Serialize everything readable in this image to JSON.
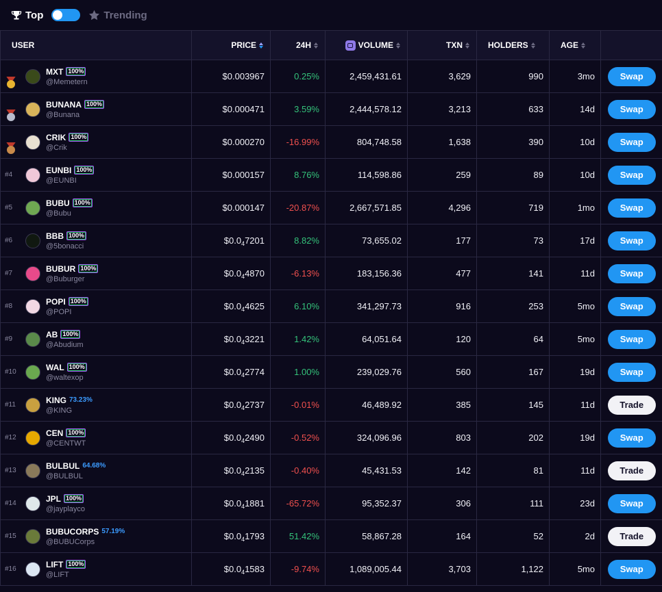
{
  "topbar": {
    "top_label": "Top",
    "trending_label": "Trending"
  },
  "columns": {
    "user": "USER",
    "price": "PRICE",
    "change": "24H",
    "volume": "VOLUME",
    "txn": "TXN",
    "holders": "HOLDERS",
    "age": "AGE"
  },
  "rows": [
    {
      "rank": "",
      "medal": "gold",
      "avatar_color": "#3a4a1a",
      "ticker": "MXT",
      "badge": "100%",
      "handle": "@Memetern",
      "price_main": "$0.003967",
      "price_sub": "",
      "price_tail": "",
      "change": "0.25%",
      "change_dir": "pos",
      "volume": "2,459,431.61",
      "txn": "3,629",
      "holders": "990",
      "age": "3mo",
      "action": "Swap"
    },
    {
      "rank": "",
      "medal": "silver",
      "avatar_color": "#d9b45a",
      "ticker": "BUNANA",
      "badge": "100%",
      "handle": "@Bunana",
      "price_main": "$0.000471",
      "price_sub": "",
      "price_tail": "",
      "change": "3.59%",
      "change_dir": "pos",
      "volume": "2,444,578.12",
      "txn": "3,213",
      "holders": "633",
      "age": "14d",
      "action": "Swap"
    },
    {
      "rank": "",
      "medal": "bronze",
      "avatar_color": "#e8e0d0",
      "ticker": "CRIK",
      "badge": "100%",
      "handle": "@Crik",
      "price_main": "$0.000270",
      "price_sub": "",
      "price_tail": "",
      "change": "-16.99%",
      "change_dir": "neg",
      "volume": "804,748.58",
      "txn": "1,638",
      "holders": "390",
      "age": "10d",
      "action": "Swap"
    },
    {
      "rank": "#4",
      "medal": "",
      "avatar_color": "#f0c8d8",
      "ticker": "EUNBI",
      "badge": "100%",
      "handle": "@EUNBI",
      "price_main": "$0.000157",
      "price_sub": "",
      "price_tail": "",
      "change": "8.76%",
      "change_dir": "pos",
      "volume": "114,598.86",
      "txn": "259",
      "holders": "89",
      "age": "10d",
      "action": "Swap"
    },
    {
      "rank": "#5",
      "medal": "",
      "avatar_color": "#6fa852",
      "ticker": "BUBU",
      "badge": "100%",
      "handle": "@Bubu",
      "price_main": "$0.000147",
      "price_sub": "",
      "price_tail": "",
      "change": "-20.87%",
      "change_dir": "neg",
      "volume": "2,667,571.85",
      "txn": "4,296",
      "holders": "719",
      "age": "1mo",
      "action": "Swap"
    },
    {
      "rank": "#6",
      "medal": "",
      "avatar_color": "#101810",
      "ticker": "BBB",
      "badge": "100%",
      "handle": "@5bonacci",
      "price_main": "$0.0",
      "price_sub": "4",
      "price_tail": "7201",
      "change": "8.82%",
      "change_dir": "pos",
      "volume": "73,655.02",
      "txn": "177",
      "holders": "73",
      "age": "17d",
      "action": "Swap"
    },
    {
      "rank": "#7",
      "medal": "",
      "avatar_color": "#e84a8a",
      "ticker": "BUBUR",
      "badge": "100%",
      "handle": "@Buburger",
      "price_main": "$0.0",
      "price_sub": "4",
      "price_tail": "4870",
      "change": "-6.13%",
      "change_dir": "neg",
      "volume": "183,156.36",
      "txn": "477",
      "holders": "141",
      "age": "11d",
      "action": "Swap"
    },
    {
      "rank": "#8",
      "medal": "",
      "avatar_color": "#f2d8e4",
      "ticker": "POPI",
      "badge": "100%",
      "handle": "@POPI",
      "price_main": "$0.0",
      "price_sub": "4",
      "price_tail": "4625",
      "change": "6.10%",
      "change_dir": "pos",
      "volume": "341,297.73",
      "txn": "916",
      "holders": "253",
      "age": "5mo",
      "action": "Swap"
    },
    {
      "rank": "#9",
      "medal": "",
      "avatar_color": "#5a8a4a",
      "ticker": "AB",
      "badge": "100%",
      "handle": "@Abudium",
      "price_main": "$0.0",
      "price_sub": "4",
      "price_tail": "3221",
      "change": "1.42%",
      "change_dir": "pos",
      "volume": "64,051.64",
      "txn": "120",
      "holders": "64",
      "age": "5mo",
      "action": "Swap"
    },
    {
      "rank": "#10",
      "medal": "",
      "avatar_color": "#6aa84f",
      "ticker": "WAL",
      "badge": "100%",
      "handle": "@waltexop",
      "price_main": "$0.0",
      "price_sub": "4",
      "price_tail": "2774",
      "change": "1.00%",
      "change_dir": "pos",
      "volume": "239,029.76",
      "txn": "560",
      "holders": "167",
      "age": "19d",
      "action": "Swap"
    },
    {
      "rank": "#11",
      "medal": "",
      "avatar_color": "#c8a040",
      "ticker": "KING",
      "badge": "",
      "pct": "73.23%",
      "handle": "@KING",
      "price_main": "$0.0",
      "price_sub": "4",
      "price_tail": "2737",
      "change": "-0.01%",
      "change_dir": "neg",
      "volume": "46,489.92",
      "txn": "385",
      "holders": "145",
      "age": "11d",
      "action": "Trade"
    },
    {
      "rank": "#12",
      "medal": "",
      "avatar_color": "#e6a800",
      "ticker": "CEN",
      "badge": "100%",
      "handle": "@CENTWT",
      "price_main": "$0.0",
      "price_sub": "4",
      "price_tail": "2490",
      "change": "-0.52%",
      "change_dir": "neg",
      "volume": "324,096.96",
      "txn": "803",
      "holders": "202",
      "age": "19d",
      "action": "Swap"
    },
    {
      "rank": "#13",
      "medal": "",
      "avatar_color": "#8a7a5a",
      "ticker": "BULBUL",
      "badge": "",
      "pct": "64.68%",
      "handle": "@BULBUL",
      "price_main": "$0.0",
      "price_sub": "4",
      "price_tail": "2135",
      "change": "-0.40%",
      "change_dir": "neg",
      "volume": "45,431.53",
      "txn": "142",
      "holders": "81",
      "age": "11d",
      "action": "Trade"
    },
    {
      "rank": "#14",
      "medal": "",
      "avatar_color": "#dfe8ea",
      "ticker": "JPL",
      "badge": "100%",
      "handle": "@jayplayco",
      "price_main": "$0.0",
      "price_sub": "4",
      "price_tail": "1881",
      "change": "-65.72%",
      "change_dir": "neg",
      "volume": "95,352.37",
      "txn": "306",
      "holders": "111",
      "age": "23d",
      "action": "Swap"
    },
    {
      "rank": "#15",
      "medal": "",
      "avatar_color": "#6a7a3a",
      "ticker": "BUBUCORPS",
      "badge": "",
      "pct": "57.19%",
      "handle": "@BUBUCorps",
      "price_main": "$0.0",
      "price_sub": "4",
      "price_tail": "1793",
      "change": "51.42%",
      "change_dir": "pos",
      "volume": "58,867.28",
      "txn": "164",
      "holders": "52",
      "age": "2d",
      "action": "Trade"
    },
    {
      "rank": "#16",
      "medal": "",
      "avatar_color": "#dbe6f2",
      "ticker": "LIFT",
      "badge": "100%",
      "handle": "@LIFT",
      "price_main": "$0.0",
      "price_sub": "4",
      "price_tail": "1583",
      "change": "-9.74%",
      "change_dir": "neg",
      "volume": "1,089,005.44",
      "txn": "3,703",
      "holders": "1,122",
      "age": "5mo",
      "action": "Swap"
    }
  ],
  "colors": {
    "background": "#0c0a1c",
    "header_bg": "#14122a",
    "swap_button": "#2196f3",
    "trade_button": "#f2f2f6",
    "positive": "#34c27a",
    "negative": "#f0504e",
    "percent_blue": "#3b9bff"
  }
}
